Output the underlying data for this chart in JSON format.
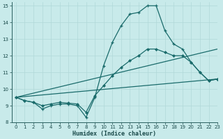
{
  "title": "",
  "xlabel": "Humidex (Indice chaleur)",
  "ylabel": "",
  "bg_color": "#c8eaea",
  "line_color": "#1a6b6b",
  "grid_color": "#b0d8d8",
  "xlim": [
    -0.5,
    23
  ],
  "ylim": [
    8,
    15.2
  ],
  "xticks": [
    0,
    1,
    2,
    3,
    4,
    5,
    6,
    7,
    8,
    9,
    10,
    11,
    12,
    13,
    14,
    15,
    16,
    17,
    18,
    19,
    20,
    21,
    22,
    23
  ],
  "yticks": [
    8,
    9,
    10,
    11,
    12,
    13,
    14,
    15
  ],
  "lines": [
    {
      "x": [
        0,
        1,
        2,
        3,
        4,
        5,
        6,
        7,
        8,
        9,
        10,
        11,
        12,
        13,
        14,
        15,
        16,
        17,
        18,
        19,
        20,
        21,
        22,
        23
      ],
      "y": [
        9.5,
        9.3,
        9.2,
        8.8,
        9.0,
        9.1,
        9.1,
        9.0,
        8.3,
        9.5,
        11.4,
        12.8,
        13.8,
        14.5,
        14.6,
        15.0,
        15.0,
        13.5,
        12.7,
        12.4,
        11.6,
        11.0,
        10.5,
        10.6
      ],
      "marker": "+"
    },
    {
      "x": [
        0,
        1,
        2,
        3,
        4,
        5,
        6,
        7,
        8,
        9,
        10,
        11,
        12,
        13,
        14,
        15,
        16,
        17,
        18,
        19,
        20,
        21,
        22,
        23
      ],
      "y": [
        9.5,
        9.3,
        9.2,
        9.0,
        9.1,
        9.2,
        9.15,
        9.1,
        8.6,
        9.6,
        10.2,
        10.8,
        11.3,
        11.7,
        12.0,
        12.4,
        12.4,
        12.2,
        12.0,
        12.0,
        11.6,
        11.0,
        10.5,
        10.6
      ],
      "marker": "D"
    },
    {
      "x": [
        0,
        23
      ],
      "y": [
        9.5,
        12.4
      ],
      "marker": null
    },
    {
      "x": [
        0,
        23
      ],
      "y": [
        9.5,
        10.6
      ],
      "marker": null
    }
  ]
}
